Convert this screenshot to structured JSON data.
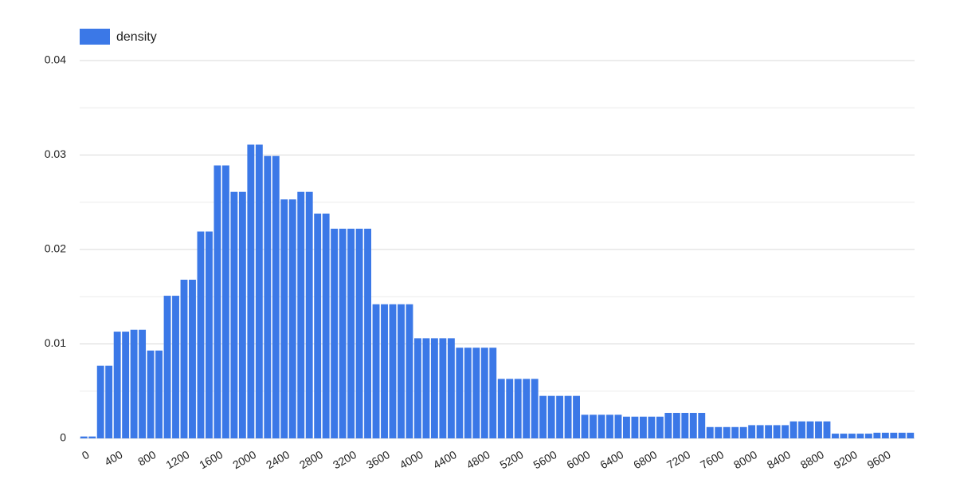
{
  "chart_data": {
    "type": "bar",
    "legend": "density",
    "legend_position": "top-left",
    "color": "#3b78e7",
    "categories": [
      "0",
      null,
      null,
      null,
      "400",
      null,
      null,
      null,
      "800",
      null,
      null,
      null,
      "1200",
      null,
      null,
      null,
      "1600",
      null,
      null,
      null,
      "2000",
      null,
      null,
      null,
      "2400",
      null,
      null,
      null,
      "2800",
      null,
      null,
      null,
      "3200",
      null,
      null,
      null,
      "3600",
      null,
      null,
      null,
      "4000",
      null,
      null,
      null,
      "4400",
      null,
      null,
      null,
      "4800",
      null,
      null,
      null,
      "5200",
      null,
      null,
      null,
      "5600",
      null,
      null,
      null,
      "6000",
      null,
      null,
      null,
      "6400",
      null,
      null,
      null,
      "6800",
      null,
      null,
      null,
      "7200",
      null,
      null,
      null,
      "7600",
      null,
      null,
      null,
      "8000",
      null,
      null,
      null,
      "8400",
      null,
      null,
      null,
      "8800",
      null,
      null,
      null,
      "9200",
      null,
      null,
      null,
      "9600",
      null,
      null,
      null
    ],
    "values": [
      0.0002,
      0.0002,
      0.0077,
      0.0077,
      0.0113,
      0.0113,
      0.0115,
      0.0115,
      0.0093,
      0.0093,
      0.0151,
      0.0151,
      0.0168,
      0.0168,
      0.0219,
      0.0219,
      0.0289,
      0.0289,
      0.0261,
      0.0261,
      0.0311,
      0.0311,
      0.0299,
      0.0299,
      0.0253,
      0.0253,
      0.0261,
      0.0261,
      0.0238,
      0.0238,
      0.0222,
      0.0222,
      0.0222,
      0.0222,
      0.0222,
      0.0142,
      0.0142,
      0.0142,
      0.0142,
      0.0142,
      0.0106,
      0.0106,
      0.0106,
      0.0106,
      0.0106,
      0.0096,
      0.0096,
      0.0096,
      0.0096,
      0.0096,
      0.0063,
      0.0063,
      0.0063,
      0.0063,
      0.0063,
      0.0045,
      0.0045,
      0.0045,
      0.0045,
      0.0045,
      0.0025,
      0.0025,
      0.0025,
      0.0025,
      0.0025,
      0.0023,
      0.0023,
      0.0023,
      0.0023,
      0.0023,
      0.0027,
      0.0027,
      0.0027,
      0.0027,
      0.0027,
      0.0012,
      0.0012,
      0.0012,
      0.0012,
      0.0012,
      0.0014,
      0.0014,
      0.0014,
      0.0014,
      0.0014,
      0.0018,
      0.0018,
      0.0018,
      0.0018,
      0.0018,
      0.0005,
      0.0005,
      0.0005,
      0.0005,
      0.0005,
      0.0006,
      0.0006,
      0.0006,
      0.0006,
      0.0006
    ],
    "ylim": [
      0,
      0.04
    ],
    "yticks": [
      0,
      0.01,
      0.02,
      0.03,
      0.04
    ],
    "grid": true
  }
}
